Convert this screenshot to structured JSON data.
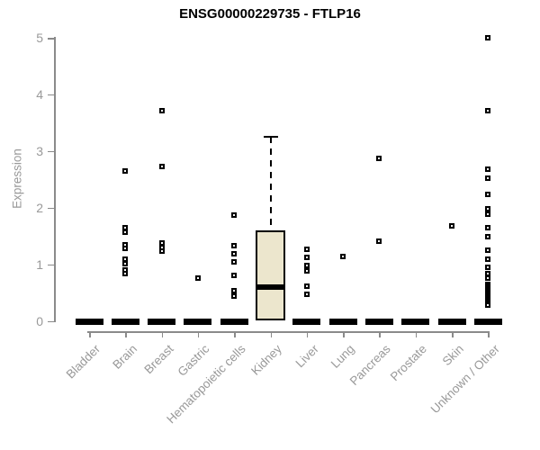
{
  "chart_data": {
    "type": "boxplot",
    "title": "ENSG00000229735 - FTLP16",
    "ylabel": "Expression",
    "xlabel": "",
    "ylim": [
      0,
      5
    ],
    "yticks": [
      0,
      1,
      2,
      3,
      4,
      5
    ],
    "grid": false,
    "legend": "none",
    "box_fill_color": "#ece6cd",
    "box_border_color": "#000000",
    "axis_color": "#8a8a8a",
    "label_color": "#999999",
    "categories": [
      "Bladder",
      "Brain",
      "Breast",
      "Gastric",
      "Hematopoietic cells",
      "Kidney",
      "Liver",
      "Lung",
      "Pancreas",
      "Prostate",
      "Skin",
      "Unknown / Other"
    ],
    "boxes": [
      {
        "category": "Bladder",
        "median": 0,
        "q1": 0,
        "q3": 0,
        "whisker_low": 0,
        "whisker_high": 0,
        "outliers": []
      },
      {
        "category": "Brain",
        "median": 0,
        "q1": 0,
        "q3": 0,
        "whisker_low": 0,
        "whisker_high": 0,
        "outliers": [
          2.65,
          1.65,
          1.56,
          1.34,
          1.28,
          1.09,
          1.01,
          0.9,
          0.83
        ]
      },
      {
        "category": "Breast",
        "median": 0,
        "q1": 0,
        "q3": 0,
        "whisker_low": 0,
        "whisker_high": 0,
        "outliers": [
          3.71,
          2.73,
          1.38,
          1.3,
          1.23
        ]
      },
      {
        "category": "Gastric",
        "median": 0,
        "q1": 0,
        "q3": 0,
        "whisker_low": 0,
        "whisker_high": 0,
        "outliers": [
          0.75
        ]
      },
      {
        "category": "Hematopoietic cells",
        "median": 0,
        "q1": 0,
        "q3": 0,
        "whisker_low": 0,
        "whisker_high": 0,
        "outliers": [
          1.87,
          1.32,
          1.18,
          1.04,
          0.8,
          0.54,
          0.44
        ]
      },
      {
        "category": "Kidney",
        "median": 0.6,
        "q1": 0,
        "q3": 1.59,
        "whisker_low": 0,
        "whisker_high": 3.25,
        "outliers": []
      },
      {
        "category": "Liver",
        "median": 0,
        "q1": 0,
        "q3": 0,
        "whisker_low": 0,
        "whisker_high": 0,
        "outliers": [
          1.26,
          1.12,
          0.97,
          0.88,
          0.62,
          0.47
        ]
      },
      {
        "category": "Lung",
        "median": 0,
        "q1": 0,
        "q3": 0,
        "whisker_low": 0,
        "whisker_high": 0,
        "outliers": [
          1.13
        ]
      },
      {
        "category": "Pancreas",
        "median": 0,
        "q1": 0,
        "q3": 0,
        "whisker_low": 0,
        "whisker_high": 0,
        "outliers": [
          2.87,
          1.41
        ]
      },
      {
        "category": "Prostate",
        "median": 0,
        "q1": 0,
        "q3": 0,
        "whisker_low": 0,
        "whisker_high": 0,
        "outliers": []
      },
      {
        "category": "Skin",
        "median": 0,
        "q1": 0,
        "q3": 0,
        "whisker_low": 0,
        "whisker_high": 0,
        "outliers": [
          1.68
        ]
      },
      {
        "category": "Unknown / Other",
        "median": 0,
        "q1": 0,
        "q3": 0,
        "whisker_low": 0,
        "whisker_high": 0,
        "outliers": [
          5.0,
          3.71,
          2.68,
          2.52,
          2.24,
          1.98,
          1.89,
          1.64,
          1.48,
          1.25,
          1.09,
          0.95,
          0.84,
          0.76,
          0.64,
          0.61,
          0.58,
          0.55,
          0.52,
          0.49,
          0.46,
          0.43,
          0.4,
          0.37,
          0.34,
          0.31,
          0.28
        ]
      }
    ]
  }
}
